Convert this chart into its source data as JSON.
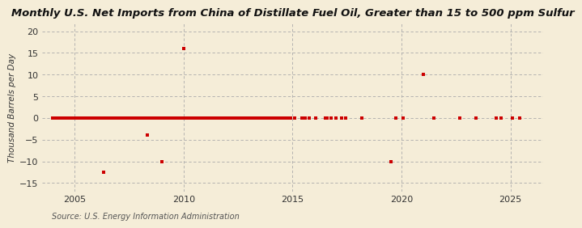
{
  "title": "Monthly U.S. Net Imports from China of Distillate Fuel Oil, Greater than 15 to 500 ppm Sulfur",
  "ylabel": "Thousand Barrels per Day",
  "source": "Source: U.S. Energy Information Administration",
  "background_color": "#f5edd8",
  "marker_color": "#cc0000",
  "marker_size": 6,
  "xlim": [
    2003.5,
    2026.5
  ],
  "ylim": [
    -17,
    22
  ],
  "yticks": [
    -15,
    -10,
    -5,
    0,
    5,
    10,
    15,
    20
  ],
  "xticks": [
    2005,
    2010,
    2015,
    2020,
    2025
  ],
  "data_points": [
    [
      2004.0,
      0
    ],
    [
      2004.08,
      0
    ],
    [
      2004.17,
      0
    ],
    [
      2004.25,
      0
    ],
    [
      2004.33,
      0
    ],
    [
      2004.42,
      0
    ],
    [
      2004.5,
      0
    ],
    [
      2004.58,
      0
    ],
    [
      2004.67,
      0
    ],
    [
      2004.75,
      0
    ],
    [
      2004.83,
      0
    ],
    [
      2004.92,
      0
    ],
    [
      2005.0,
      0
    ],
    [
      2005.08,
      0
    ],
    [
      2005.17,
      0
    ],
    [
      2005.25,
      0
    ],
    [
      2005.33,
      0
    ],
    [
      2005.42,
      0
    ],
    [
      2005.5,
      0
    ],
    [
      2005.58,
      0
    ],
    [
      2005.67,
      0
    ],
    [
      2005.75,
      0
    ],
    [
      2005.83,
      0
    ],
    [
      2005.92,
      0
    ],
    [
      2006.0,
      0
    ],
    [
      2006.08,
      0
    ],
    [
      2006.17,
      0
    ],
    [
      2006.25,
      0
    ],
    [
      2006.33,
      -12.5
    ],
    [
      2006.42,
      0
    ],
    [
      2006.5,
      0
    ],
    [
      2006.58,
      0
    ],
    [
      2006.67,
      0
    ],
    [
      2006.75,
      0
    ],
    [
      2006.83,
      0
    ],
    [
      2006.92,
      0
    ],
    [
      2007.0,
      0
    ],
    [
      2007.08,
      0
    ],
    [
      2007.17,
      0
    ],
    [
      2007.25,
      0
    ],
    [
      2007.33,
      0
    ],
    [
      2007.42,
      0
    ],
    [
      2007.5,
      0
    ],
    [
      2007.58,
      0
    ],
    [
      2007.67,
      0
    ],
    [
      2007.75,
      0
    ],
    [
      2007.83,
      0
    ],
    [
      2007.92,
      0
    ],
    [
      2008.0,
      0
    ],
    [
      2008.08,
      0
    ],
    [
      2008.17,
      0
    ],
    [
      2008.25,
      0
    ],
    [
      2008.33,
      -4.0
    ],
    [
      2008.42,
      0
    ],
    [
      2008.5,
      0
    ],
    [
      2008.58,
      0
    ],
    [
      2008.67,
      0
    ],
    [
      2008.75,
      0
    ],
    [
      2008.83,
      0
    ],
    [
      2008.92,
      0
    ],
    [
      2009.0,
      -10.0
    ],
    [
      2009.08,
      0
    ],
    [
      2009.17,
      0
    ],
    [
      2009.25,
      0
    ],
    [
      2009.33,
      0
    ],
    [
      2009.42,
      0
    ],
    [
      2009.5,
      0
    ],
    [
      2009.58,
      0
    ],
    [
      2009.67,
      0
    ],
    [
      2009.75,
      0
    ],
    [
      2009.83,
      0
    ],
    [
      2009.92,
      0
    ],
    [
      2010.0,
      16.0
    ],
    [
      2010.08,
      0
    ],
    [
      2010.17,
      0
    ],
    [
      2010.25,
      0
    ],
    [
      2010.33,
      0
    ],
    [
      2010.42,
      0
    ],
    [
      2010.5,
      0
    ],
    [
      2010.58,
      0
    ],
    [
      2010.67,
      0
    ],
    [
      2010.75,
      0
    ],
    [
      2010.83,
      0
    ],
    [
      2010.92,
      0
    ],
    [
      2011.0,
      0
    ],
    [
      2011.08,
      0
    ],
    [
      2011.17,
      0
    ],
    [
      2011.25,
      0
    ],
    [
      2011.33,
      0
    ],
    [
      2011.42,
      0
    ],
    [
      2011.5,
      0
    ],
    [
      2011.58,
      0
    ],
    [
      2011.67,
      0
    ],
    [
      2011.75,
      0
    ],
    [
      2011.83,
      0
    ],
    [
      2011.92,
      0
    ],
    [
      2012.0,
      0
    ],
    [
      2012.08,
      0
    ],
    [
      2012.17,
      0
    ],
    [
      2012.25,
      0
    ],
    [
      2012.33,
      0
    ],
    [
      2012.42,
      0
    ],
    [
      2012.5,
      0
    ],
    [
      2012.58,
      0
    ],
    [
      2012.67,
      0
    ],
    [
      2012.75,
      0
    ],
    [
      2012.83,
      0
    ],
    [
      2012.92,
      0
    ],
    [
      2013.0,
      0
    ],
    [
      2013.08,
      0
    ],
    [
      2013.17,
      0
    ],
    [
      2013.25,
      0
    ],
    [
      2013.33,
      0
    ],
    [
      2013.42,
      0
    ],
    [
      2013.5,
      0
    ],
    [
      2013.58,
      0
    ],
    [
      2013.67,
      0
    ],
    [
      2013.75,
      0
    ],
    [
      2013.83,
      0
    ],
    [
      2013.92,
      0
    ],
    [
      2014.0,
      0
    ],
    [
      2014.08,
      0
    ],
    [
      2014.17,
      0
    ],
    [
      2014.25,
      0
    ],
    [
      2014.33,
      0
    ],
    [
      2014.42,
      0
    ],
    [
      2014.5,
      0
    ],
    [
      2014.58,
      0
    ],
    [
      2014.67,
      0
    ],
    [
      2014.75,
      0
    ],
    [
      2014.83,
      0
    ],
    [
      2014.92,
      0
    ],
    [
      2015.08,
      0
    ],
    [
      2015.42,
      0
    ],
    [
      2015.58,
      0
    ],
    [
      2015.75,
      0
    ],
    [
      2016.08,
      0
    ],
    [
      2016.5,
      0
    ],
    [
      2016.58,
      0
    ],
    [
      2016.75,
      0
    ],
    [
      2017.0,
      0
    ],
    [
      2017.25,
      0
    ],
    [
      2017.42,
      0
    ],
    [
      2018.17,
      0
    ],
    [
      2019.5,
      -10.0
    ],
    [
      2019.75,
      0
    ],
    [
      2020.08,
      0
    ],
    [
      2021.0,
      10.0
    ],
    [
      2021.5,
      0
    ],
    [
      2022.67,
      0
    ],
    [
      2023.42,
      0
    ],
    [
      2024.33,
      0
    ],
    [
      2024.58,
      0
    ],
    [
      2025.08,
      0
    ],
    [
      2025.42,
      0
    ]
  ]
}
